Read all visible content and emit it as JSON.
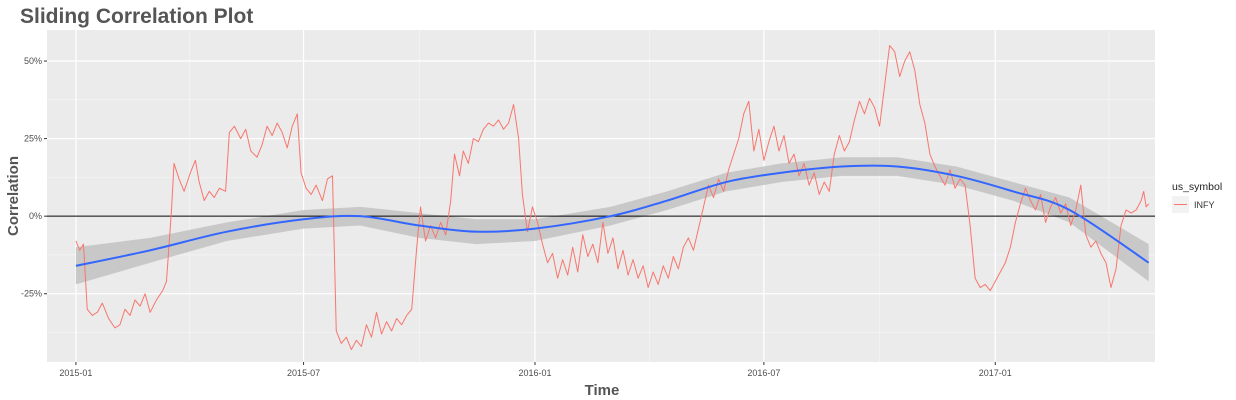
{
  "chart_data": {
    "type": "line",
    "title": "Sliding Correlation Plot",
    "xlabel": "Time",
    "ylabel": "Correlation",
    "xlim": [
      "2014-12-09",
      "2017-05-08"
    ],
    "ylim": [
      -0.47,
      0.6
    ],
    "x_ticks": [
      "2015-01",
      "2015-07",
      "2016-01",
      "2016-07",
      "2017-01"
    ],
    "y_ticks": [
      {
        "value": 0.5,
        "label": "50%"
      },
      {
        "value": 0.25,
        "label": "25%"
      },
      {
        "value": 0,
        "label": "0%"
      },
      {
        "value": -0.25,
        "label": "-25%"
      }
    ],
    "grid": true,
    "reference_line": 0,
    "legend": {
      "title": "us_symbol",
      "position": "right",
      "entries": [
        "INFY"
      ]
    },
    "colors": {
      "series": "#f8766d",
      "smooth": "#3366ff",
      "band": "#c2c2c2",
      "panel": "#ebebeb"
    },
    "series": [
      {
        "name": "INFY",
        "points": [
          [
            "2015-01-01",
            -0.08
          ],
          [
            "2015-01-04",
            -0.11
          ],
          [
            "2015-01-07",
            -0.09
          ],
          [
            "2015-01-10",
            -0.3
          ],
          [
            "2015-01-14",
            -0.32
          ],
          [
            "2015-01-18",
            -0.31
          ],
          [
            "2015-01-22",
            -0.28
          ],
          [
            "2015-01-27",
            -0.33
          ],
          [
            "2015-02-01",
            -0.36
          ],
          [
            "2015-02-05",
            -0.35
          ],
          [
            "2015-02-09",
            -0.3
          ],
          [
            "2015-02-13",
            -0.32
          ],
          [
            "2015-02-17",
            -0.27
          ],
          [
            "2015-02-21",
            -0.29
          ],
          [
            "2015-02-25",
            -0.25
          ],
          [
            "2015-03-01",
            -0.31
          ],
          [
            "2015-03-06",
            -0.27
          ],
          [
            "2015-03-11",
            -0.24
          ],
          [
            "2015-03-14",
            -0.21
          ],
          [
            "2015-03-18",
            0.02
          ],
          [
            "2015-03-20",
            0.17
          ],
          [
            "2015-03-24",
            0.12
          ],
          [
            "2015-03-28",
            0.08
          ],
          [
            "2015-04-02",
            0.14
          ],
          [
            "2015-04-06",
            0.18
          ],
          [
            "2015-04-09",
            0.11
          ],
          [
            "2015-04-13",
            0.05
          ],
          [
            "2015-04-17",
            0.08
          ],
          [
            "2015-04-21",
            0.06
          ],
          [
            "2015-04-25",
            0.09
          ],
          [
            "2015-04-30",
            0.08
          ],
          [
            "2015-05-03",
            0.27
          ],
          [
            "2015-05-07",
            0.29
          ],
          [
            "2015-05-12",
            0.25
          ],
          [
            "2015-05-16",
            0.28
          ],
          [
            "2015-05-20",
            0.21
          ],
          [
            "2015-05-25",
            0.19
          ],
          [
            "2015-05-29",
            0.23
          ],
          [
            "2015-06-02",
            0.29
          ],
          [
            "2015-06-06",
            0.26
          ],
          [
            "2015-06-10",
            0.3
          ],
          [
            "2015-06-14",
            0.27
          ],
          [
            "2015-06-18",
            0.22
          ],
          [
            "2015-06-22",
            0.29
          ],
          [
            "2015-06-26",
            0.33
          ],
          [
            "2015-06-29",
            0.14
          ],
          [
            "2015-07-03",
            0.09
          ],
          [
            "2015-07-07",
            0.07
          ],
          [
            "2015-07-11",
            0.1
          ],
          [
            "2015-07-16",
            0.05
          ],
          [
            "2015-07-20",
            0.12
          ],
          [
            "2015-07-24",
            0.13
          ],
          [
            "2015-07-27",
            -0.37
          ],
          [
            "2015-07-31",
            -0.41
          ],
          [
            "2015-08-04",
            -0.39
          ],
          [
            "2015-08-08",
            -0.43
          ],
          [
            "2015-08-12",
            -0.4
          ],
          [
            "2015-08-16",
            -0.42
          ],
          [
            "2015-08-20",
            -0.35
          ],
          [
            "2015-08-24",
            -0.39
          ],
          [
            "2015-08-28",
            -0.31
          ],
          [
            "2015-09-01",
            -0.38
          ],
          [
            "2015-09-05",
            -0.34
          ],
          [
            "2015-09-09",
            -0.37
          ],
          [
            "2015-09-13",
            -0.33
          ],
          [
            "2015-09-17",
            -0.35
          ],
          [
            "2015-09-21",
            -0.32
          ],
          [
            "2015-09-25",
            -0.3
          ],
          [
            "2015-09-29",
            -0.1
          ],
          [
            "2015-10-02",
            0.03
          ],
          [
            "2015-10-06",
            -0.08
          ],
          [
            "2015-10-10",
            -0.03
          ],
          [
            "2015-10-14",
            -0.07
          ],
          [
            "2015-10-18",
            -0.02
          ],
          [
            "2015-10-22",
            -0.06
          ],
          [
            "2015-10-26",
            0.05
          ],
          [
            "2015-10-29",
            0.2
          ],
          [
            "2015-11-02",
            0.13
          ],
          [
            "2015-11-05",
            0.21
          ],
          [
            "2015-11-09",
            0.17
          ],
          [
            "2015-11-13",
            0.25
          ],
          [
            "2015-11-17",
            0.24
          ],
          [
            "2015-11-21",
            0.28
          ],
          [
            "2015-11-25",
            0.3
          ],
          [
            "2015-11-29",
            0.29
          ],
          [
            "2015-12-03",
            0.31
          ],
          [
            "2015-12-07",
            0.28
          ],
          [
            "2015-12-11",
            0.3
          ],
          [
            "2015-12-15",
            0.36
          ],
          [
            "2015-12-19",
            0.25
          ],
          [
            "2015-12-22",
            0.07
          ],
          [
            "2015-12-26",
            -0.05
          ],
          [
            "2015-12-30",
            0.03
          ],
          [
            "2016-01-03",
            -0.02
          ],
          [
            "2016-01-07",
            -0.09
          ],
          [
            "2016-01-11",
            -0.15
          ],
          [
            "2016-01-15",
            -0.12
          ],
          [
            "2016-01-19",
            -0.2
          ],
          [
            "2016-01-23",
            -0.14
          ],
          [
            "2016-01-27",
            -0.19
          ],
          [
            "2016-01-31",
            -0.1
          ],
          [
            "2016-02-04",
            -0.18
          ],
          [
            "2016-02-08",
            -0.06
          ],
          [
            "2016-02-12",
            -0.13
          ],
          [
            "2016-02-16",
            -0.09
          ],
          [
            "2016-02-20",
            -0.15
          ],
          [
            "2016-02-24",
            -0.02
          ],
          [
            "2016-02-28",
            -0.12
          ],
          [
            "2016-03-03",
            -0.07
          ],
          [
            "2016-03-07",
            -0.17
          ],
          [
            "2016-03-11",
            -0.11
          ],
          [
            "2016-03-15",
            -0.19
          ],
          [
            "2016-03-19",
            -0.14
          ],
          [
            "2016-03-23",
            -0.2
          ],
          [
            "2016-03-27",
            -0.16
          ],
          [
            "2016-03-31",
            -0.23
          ],
          [
            "2016-04-04",
            -0.18
          ],
          [
            "2016-04-08",
            -0.22
          ],
          [
            "2016-04-12",
            -0.16
          ],
          [
            "2016-04-16",
            -0.2
          ],
          [
            "2016-04-20",
            -0.13
          ],
          [
            "2016-04-24",
            -0.17
          ],
          [
            "2016-04-28",
            -0.1
          ],
          [
            "2016-05-02",
            -0.07
          ],
          [
            "2016-05-06",
            -0.11
          ],
          [
            "2016-05-10",
            -0.04
          ],
          [
            "2016-05-14",
            0.03
          ],
          [
            "2016-05-18",
            0.1
          ],
          [
            "2016-05-22",
            0.06
          ],
          [
            "2016-05-26",
            0.12
          ],
          [
            "2016-05-30",
            0.08
          ],
          [
            "2016-06-03",
            0.15
          ],
          [
            "2016-06-07",
            0.2
          ],
          [
            "2016-06-11",
            0.25
          ],
          [
            "2016-06-15",
            0.33
          ],
          [
            "2016-06-19",
            0.37
          ],
          [
            "2016-06-23",
            0.21
          ],
          [
            "2016-06-27",
            0.28
          ],
          [
            "2016-07-01",
            0.18
          ],
          [
            "2016-07-05",
            0.24
          ],
          [
            "2016-07-09",
            0.29
          ],
          [
            "2016-07-13",
            0.21
          ],
          [
            "2016-07-17",
            0.26
          ],
          [
            "2016-07-21",
            0.17
          ],
          [
            "2016-07-25",
            0.2
          ],
          [
            "2016-07-29",
            0.13
          ],
          [
            "2016-08-02",
            0.17
          ],
          [
            "2016-08-06",
            0.1
          ],
          [
            "2016-08-10",
            0.14
          ],
          [
            "2016-08-14",
            0.07
          ],
          [
            "2016-08-18",
            0.11
          ],
          [
            "2016-08-22",
            0.08
          ],
          [
            "2016-08-26",
            0.2
          ],
          [
            "2016-08-30",
            0.26
          ],
          [
            "2016-09-03",
            0.21
          ],
          [
            "2016-09-07",
            0.24
          ],
          [
            "2016-09-11",
            0.31
          ],
          [
            "2016-09-15",
            0.37
          ],
          [
            "2016-09-19",
            0.33
          ],
          [
            "2016-09-23",
            0.38
          ],
          [
            "2016-09-27",
            0.35
          ],
          [
            "2016-10-01",
            0.29
          ],
          [
            "2016-10-05",
            0.42
          ],
          [
            "2016-10-09",
            0.55
          ],
          [
            "2016-10-13",
            0.53
          ],
          [
            "2016-10-17",
            0.45
          ],
          [
            "2016-10-21",
            0.5
          ],
          [
            "2016-10-25",
            0.53
          ],
          [
            "2016-10-29",
            0.47
          ],
          [
            "2016-11-02",
            0.36
          ],
          [
            "2016-11-06",
            0.3
          ],
          [
            "2016-11-10",
            0.2
          ],
          [
            "2016-11-14",
            0.16
          ],
          [
            "2016-11-18",
            0.13
          ],
          [
            "2016-11-22",
            0.1
          ],
          [
            "2016-11-26",
            0.15
          ],
          [
            "2016-11-30",
            0.09
          ],
          [
            "2016-12-04",
            0.12
          ],
          [
            "2016-12-08",
            0.1
          ],
          [
            "2016-12-12",
            -0.03
          ],
          [
            "2016-12-16",
            -0.2
          ],
          [
            "2016-12-20",
            -0.23
          ],
          [
            "2016-12-24",
            -0.22
          ],
          [
            "2016-12-28",
            -0.24
          ],
          [
            "2017-01-01",
            -0.21
          ],
          [
            "2017-01-05",
            -0.18
          ],
          [
            "2017-01-09",
            -0.15
          ],
          [
            "2017-01-13",
            -0.1
          ],
          [
            "2017-01-17",
            -0.02
          ],
          [
            "2017-01-21",
            0.04
          ],
          [
            "2017-01-25",
            0.09
          ],
          [
            "2017-01-29",
            0.05
          ],
          [
            "2017-02-02",
            0.02
          ],
          [
            "2017-02-06",
            0.07
          ],
          [
            "2017-02-10",
            -0.02
          ],
          [
            "2017-02-14",
            0.03
          ],
          [
            "2017-02-18",
            0.06
          ],
          [
            "2017-02-22",
            0.01
          ],
          [
            "2017-02-26",
            0.04
          ],
          [
            "2017-03-02",
            -0.03
          ],
          [
            "2017-03-06",
            0.02
          ],
          [
            "2017-03-10",
            0.1
          ],
          [
            "2017-03-14",
            -0.06
          ],
          [
            "2017-03-18",
            -0.1
          ],
          [
            "2017-03-22",
            -0.08
          ],
          [
            "2017-03-26",
            -0.12
          ],
          [
            "2017-03-30",
            -0.15
          ],
          [
            "2017-04-03",
            -0.23
          ],
          [
            "2017-04-07",
            -0.17
          ],
          [
            "2017-04-11",
            -0.03
          ],
          [
            "2017-04-15",
            0.02
          ],
          [
            "2017-04-19",
            0.01
          ],
          [
            "2017-04-23",
            0.02
          ],
          [
            "2017-04-27",
            0.05
          ],
          [
            "2017-04-29",
            0.08
          ],
          [
            "2017-05-01",
            0.03
          ],
          [
            "2017-05-03",
            0.04
          ]
        ]
      }
    ],
    "smooth": {
      "x": [
        "2015-01-01",
        "2015-03-01",
        "2015-05-01",
        "2015-07-01",
        "2015-08-15",
        "2015-10-01",
        "2015-11-15",
        "2016-01-01",
        "2016-03-01",
        "2016-04-15",
        "2016-06-01",
        "2016-07-15",
        "2016-09-01",
        "2016-10-15",
        "2016-12-01",
        "2017-01-15",
        "2017-03-01",
        "2017-05-03"
      ],
      "fit": [
        -0.16,
        -0.11,
        -0.05,
        -0.01,
        0.0,
        -0.03,
        -0.05,
        -0.04,
        0.0,
        0.05,
        0.11,
        0.14,
        0.16,
        0.16,
        0.13,
        0.08,
        0.02,
        -0.15
      ],
      "lower": [
        -0.22,
        -0.15,
        -0.08,
        -0.04,
        -0.03,
        -0.07,
        -0.09,
        -0.08,
        -0.03,
        0.02,
        0.08,
        0.11,
        0.13,
        0.13,
        0.1,
        0.05,
        -0.02,
        -0.21
      ],
      "upper": [
        -0.1,
        -0.07,
        -0.02,
        0.02,
        0.03,
        0.01,
        -0.01,
        -0.01,
        0.03,
        0.08,
        0.14,
        0.17,
        0.19,
        0.19,
        0.16,
        0.11,
        0.06,
        -0.09
      ]
    }
  }
}
